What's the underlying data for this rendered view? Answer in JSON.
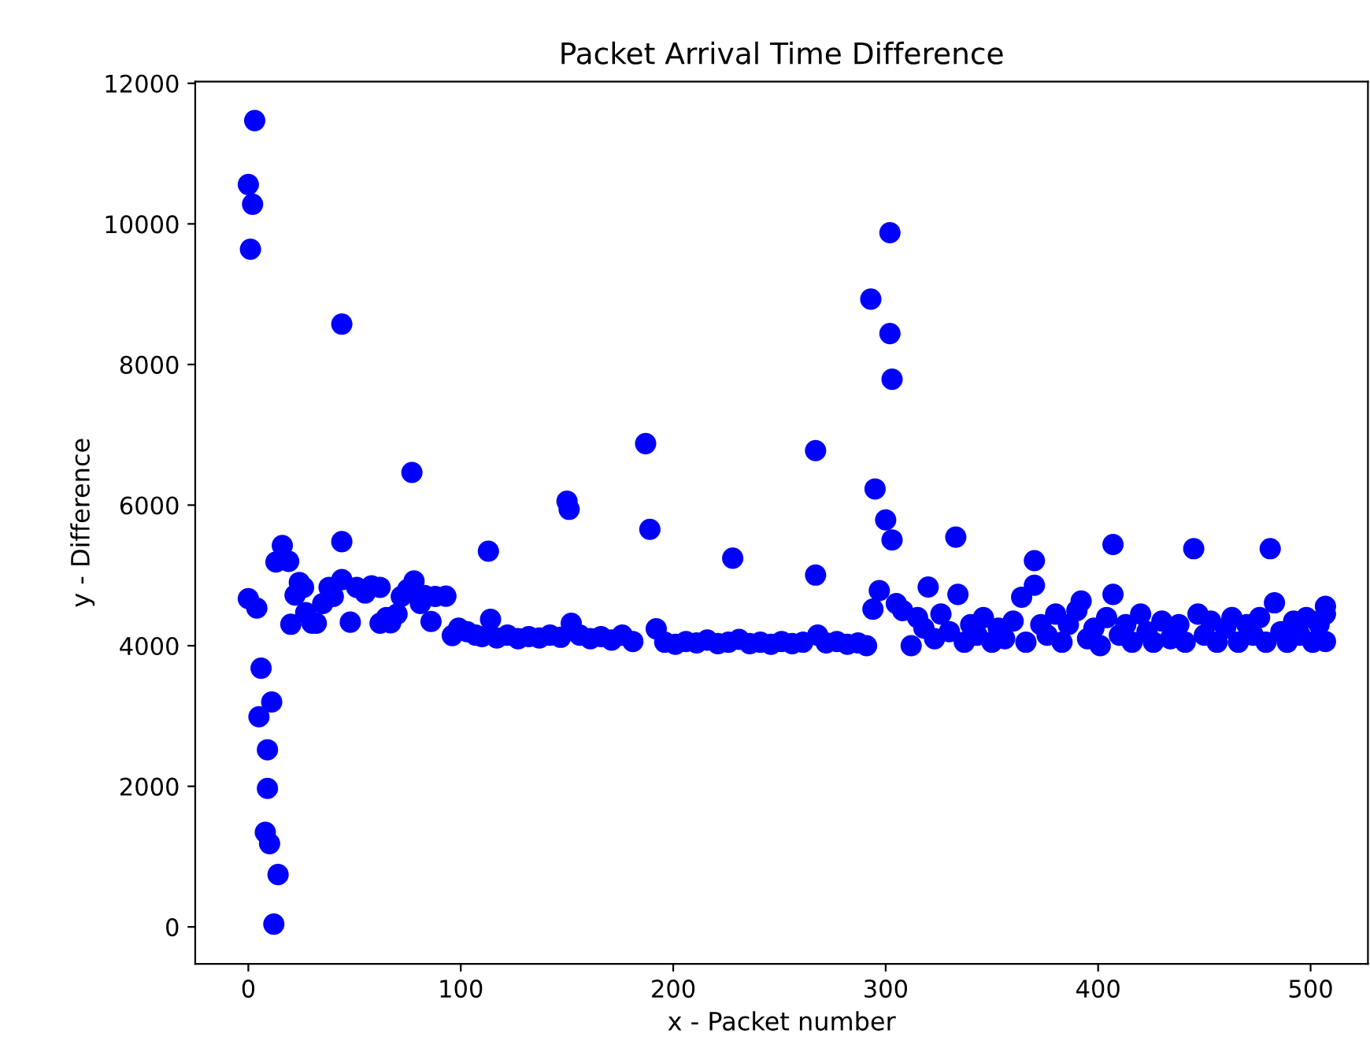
{
  "chart_data": {
    "type": "scatter",
    "title": "Packet Arrival Time Difference",
    "xlabel": "x - Packet number",
    "ylabel": "y - Difference",
    "xlim": [
      -25,
      527
    ],
    "ylim": [
      -525,
      12025
    ],
    "xticks": [
      0,
      100,
      200,
      300,
      400,
      500
    ],
    "yticks": [
      0,
      2000,
      4000,
      6000,
      8000,
      10000,
      12000
    ],
    "grid": false,
    "marker": "circle",
    "series": [
      {
        "color": "#0000ff",
        "x": [
          0,
          1,
          2,
          3,
          0,
          4,
          5,
          6,
          8,
          9,
          9,
          10,
          11,
          12,
          13,
          14,
          16,
          19,
          20,
          22,
          24,
          26,
          27,
          30,
          32,
          35,
          38,
          40,
          44,
          44,
          44,
          48,
          51,
          55,
          58,
          62,
          62,
          65,
          67,
          70,
          72,
          75,
          77,
          78,
          81,
          83,
          86,
          88,
          93,
          96,
          99,
          103,
          107,
          110,
          113,
          114,
          117,
          122,
          127,
          132,
          137,
          142,
          147,
          150,
          151,
          152,
          156,
          161,
          166,
          171,
          176,
          181,
          187,
          189,
          192,
          196,
          201,
          206,
          211,
          216,
          221,
          226,
          228,
          231,
          236,
          241,
          246,
          251,
          256,
          261,
          267,
          267,
          268,
          272,
          277,
          282,
          287,
          291,
          293,
          294,
          295,
          297,
          300,
          302,
          302,
          303,
          303,
          305,
          308,
          312,
          315,
          318,
          320,
          323,
          326,
          330,
          333,
          334,
          337,
          340,
          343,
          346,
          350,
          353,
          356,
          360,
          364,
          366,
          370,
          370,
          373,
          376,
          380,
          383,
          386,
          390,
          392,
          395,
          398,
          401,
          404,
          407,
          407,
          410,
          413,
          416,
          420,
          423,
          426,
          430,
          434,
          438,
          441,
          445,
          447,
          450,
          453,
          456,
          460,
          463,
          466,
          470,
          473,
          476,
          479,
          481,
          483,
          486,
          489,
          492,
          495,
          498,
          501,
          504,
          507,
          507,
          507
        ],
        "values": [
          10560,
          9640,
          10280,
          11470,
          4670,
          4535,
          2990,
          3680,
          1345,
          2520,
          1970,
          1185,
          3200,
          40,
          5190,
          745,
          5425,
          5200,
          4305,
          4720,
          4900,
          4830,
          4470,
          4320,
          4320,
          4600,
          4830,
          4700,
          8575,
          5480,
          4940,
          4335,
          4830,
          4750,
          4850,
          4830,
          4320,
          4400,
          4325,
          4450,
          4700,
          4800,
          6465,
          4920,
          4600,
          4715,
          4345,
          4700,
          4705,
          4145,
          4250,
          4200,
          4150,
          4130,
          5345,
          4375,
          4110,
          4150,
          4100,
          4130,
          4110,
          4150,
          4120,
          6055,
          5940,
          4320,
          4150,
          4100,
          4130,
          4080,
          4150,
          4060,
          6875,
          5655,
          4240,
          4050,
          4020,
          4060,
          4040,
          4080,
          4030,
          4050,
          5245,
          4090,
          4030,
          4050,
          4020,
          4060,
          4030,
          4050,
          6775,
          5005,
          4150,
          4040,
          4060,
          4020,
          4040,
          4000,
          8930,
          4520,
          6230,
          4785,
          5790,
          9875,
          8440,
          7790,
          5505,
          4600,
          4500,
          4000,
          4400,
          4250,
          4835,
          4100,
          4450,
          4200,
          5545,
          4730,
          4050,
          4300,
          4150,
          4400,
          4050,
          4250,
          4100,
          4350,
          4690,
          4050,
          5210,
          4860,
          4300,
          4150,
          4450,
          4050,
          4300,
          4500,
          4635,
          4100,
          4250,
          4000,
          4400,
          5440,
          4730,
          4150,
          4300,
          4050,
          4450,
          4200,
          4050,
          4350,
          4100,
          4300,
          4050,
          5380,
          4450,
          4150,
          4350,
          4050,
          4250,
          4400,
          4050,
          4300,
          4150,
          4400,
          4050,
          5380,
          4610,
          4200,
          4050,
          4350,
          4150,
          4400,
          4050,
          4300,
          4560,
          4450,
          4060
        ]
      }
    ]
  }
}
